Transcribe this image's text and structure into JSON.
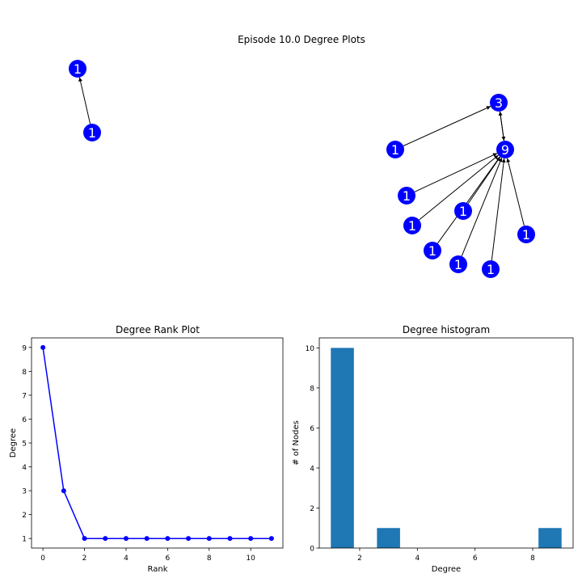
{
  "suptitle": "Episode 10.0 Degree Plots",
  "colors": {
    "node": "#0000ff",
    "node_label": "#ffffff",
    "edge": "#000000",
    "rank_line": "#0000ff",
    "hist_bar": "#1f77b4"
  },
  "network": {
    "nodes": [
      {
        "id": "a",
        "label": "1"
      },
      {
        "id": "b",
        "label": "1"
      },
      {
        "id": "c",
        "label": "3"
      },
      {
        "id": "d",
        "label": "9"
      },
      {
        "id": "e",
        "label": "1"
      },
      {
        "id": "f",
        "label": "1"
      },
      {
        "id": "g",
        "label": "1"
      },
      {
        "id": "h",
        "label": "1"
      },
      {
        "id": "i",
        "label": "1"
      },
      {
        "id": "j",
        "label": "1"
      },
      {
        "id": "k",
        "label": "1"
      },
      {
        "id": "l",
        "label": "1"
      }
    ],
    "edges": [
      {
        "from": "b",
        "to": "a"
      },
      {
        "from": "d",
        "to": "c"
      },
      {
        "from": "c",
        "to": "d"
      },
      {
        "from": "e",
        "to": "c"
      },
      {
        "from": "f",
        "to": "d"
      },
      {
        "from": "g",
        "to": "d"
      },
      {
        "from": "h",
        "to": "d"
      },
      {
        "from": "i",
        "to": "d"
      },
      {
        "from": "j",
        "to": "d"
      },
      {
        "from": "k",
        "to": "d"
      },
      {
        "from": "l",
        "to": "d"
      }
    ]
  },
  "chart_data": [
    {
      "type": "line",
      "title": "Degree Rank Plot",
      "xlabel": "Rank",
      "ylabel": "Degree",
      "x": [
        0,
        1,
        2,
        3,
        4,
        5,
        6,
        7,
        8,
        9,
        10,
        11
      ],
      "y": [
        9,
        3,
        1,
        1,
        1,
        1,
        1,
        1,
        1,
        1,
        1,
        1
      ],
      "xlim": [
        -0.55,
        11.55
      ],
      "ylim": [
        0.6,
        9.4
      ],
      "xticks": [
        0,
        2,
        4,
        6,
        8,
        10
      ],
      "yticks": [
        1,
        2,
        3,
        4,
        5,
        6,
        7,
        8,
        9
      ],
      "marker": "circle",
      "grid": false
    },
    {
      "type": "bar",
      "title": "Degree histogram",
      "xlabel": "Degree",
      "ylabel": "# of Nodes",
      "bins": [
        {
          "x0": 1.0,
          "x1": 1.8,
          "count": 10
        },
        {
          "x0": 1.8,
          "x1": 2.6,
          "count": 0
        },
        {
          "x0": 2.6,
          "x1": 3.4,
          "count": 1
        },
        {
          "x0": 3.4,
          "x1": 4.2,
          "count": 0
        },
        {
          "x0": 4.2,
          "x1": 5.0,
          "count": 0
        },
        {
          "x0": 5.0,
          "x1": 5.8,
          "count": 0
        },
        {
          "x0": 5.8,
          "x1": 6.6,
          "count": 0
        },
        {
          "x0": 6.6,
          "x1": 7.4,
          "count": 0
        },
        {
          "x0": 7.4,
          "x1": 8.2,
          "count": 0
        },
        {
          "x0": 8.2,
          "x1": 9.0,
          "count": 1
        }
      ],
      "xlim": [
        0.6,
        9.4
      ],
      "ylim": [
        0,
        10.5
      ],
      "xticks": [
        2,
        4,
        6,
        8
      ],
      "yticks": [
        0,
        2,
        4,
        6,
        8,
        10
      ],
      "grid": false
    }
  ]
}
